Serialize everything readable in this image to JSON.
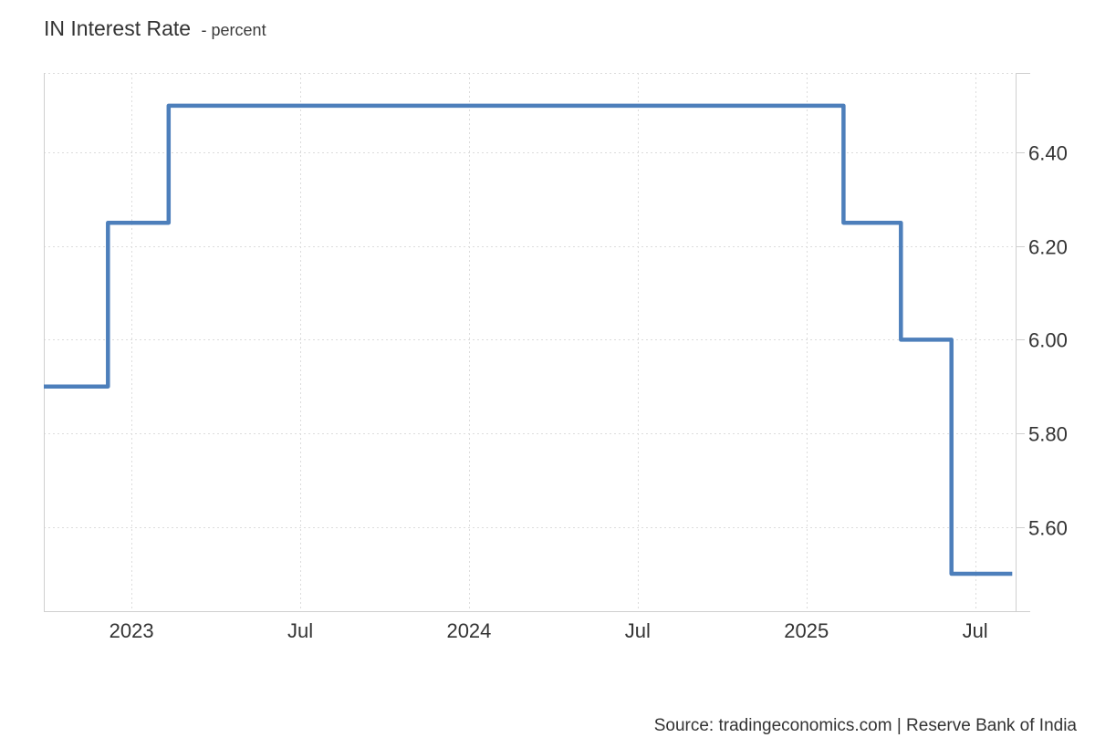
{
  "title": {
    "main": "IN Interest Rate",
    "subtitle": "- percent"
  },
  "source": "Source: tradingeconomics.com | Reserve Bank of India",
  "colors": {
    "line": "#4d7fbb",
    "grid": "#dcdcdc",
    "axis": "#cfcfcf",
    "text": "#333333"
  },
  "chart_data": {
    "type": "line",
    "line_style": "step-after",
    "title": "IN Interest Rate",
    "ylabel": "percent",
    "grid": true,
    "legend": false,
    "xlim": [
      2022.74,
      2025.62
    ],
    "ylim": [
      5.42,
      6.57
    ],
    "x_ticks": [
      {
        "x": 2023.0,
        "label": "2023"
      },
      {
        "x": 2023.5,
        "label": "Jul"
      },
      {
        "x": 2024.0,
        "label": "2024"
      },
      {
        "x": 2024.5,
        "label": "Jul"
      },
      {
        "x": 2025.0,
        "label": "2025"
      },
      {
        "x": 2025.5,
        "label": "Jul"
      }
    ],
    "y_ticks": [
      {
        "value": 6.4,
        "label": "6.40"
      },
      {
        "value": 6.2,
        "label": "6.20"
      },
      {
        "value": 6.0,
        "label": "6.00"
      },
      {
        "value": 5.8,
        "label": "5.80"
      },
      {
        "value": 5.6,
        "label": "5.60"
      }
    ],
    "series": [
      {
        "name": "IN Interest Rate",
        "unit": "percent",
        "step_points": [
          {
            "x": 2022.74,
            "value": 5.9
          },
          {
            "x": 2022.93,
            "value": 6.25
          },
          {
            "x": 2023.11,
            "value": 6.5
          },
          {
            "x": 2025.11,
            "value": 6.25
          },
          {
            "x": 2025.28,
            "value": 6.0
          },
          {
            "x": 2025.43,
            "value": 5.5
          }
        ],
        "x_end": 2025.61
      }
    ]
  }
}
